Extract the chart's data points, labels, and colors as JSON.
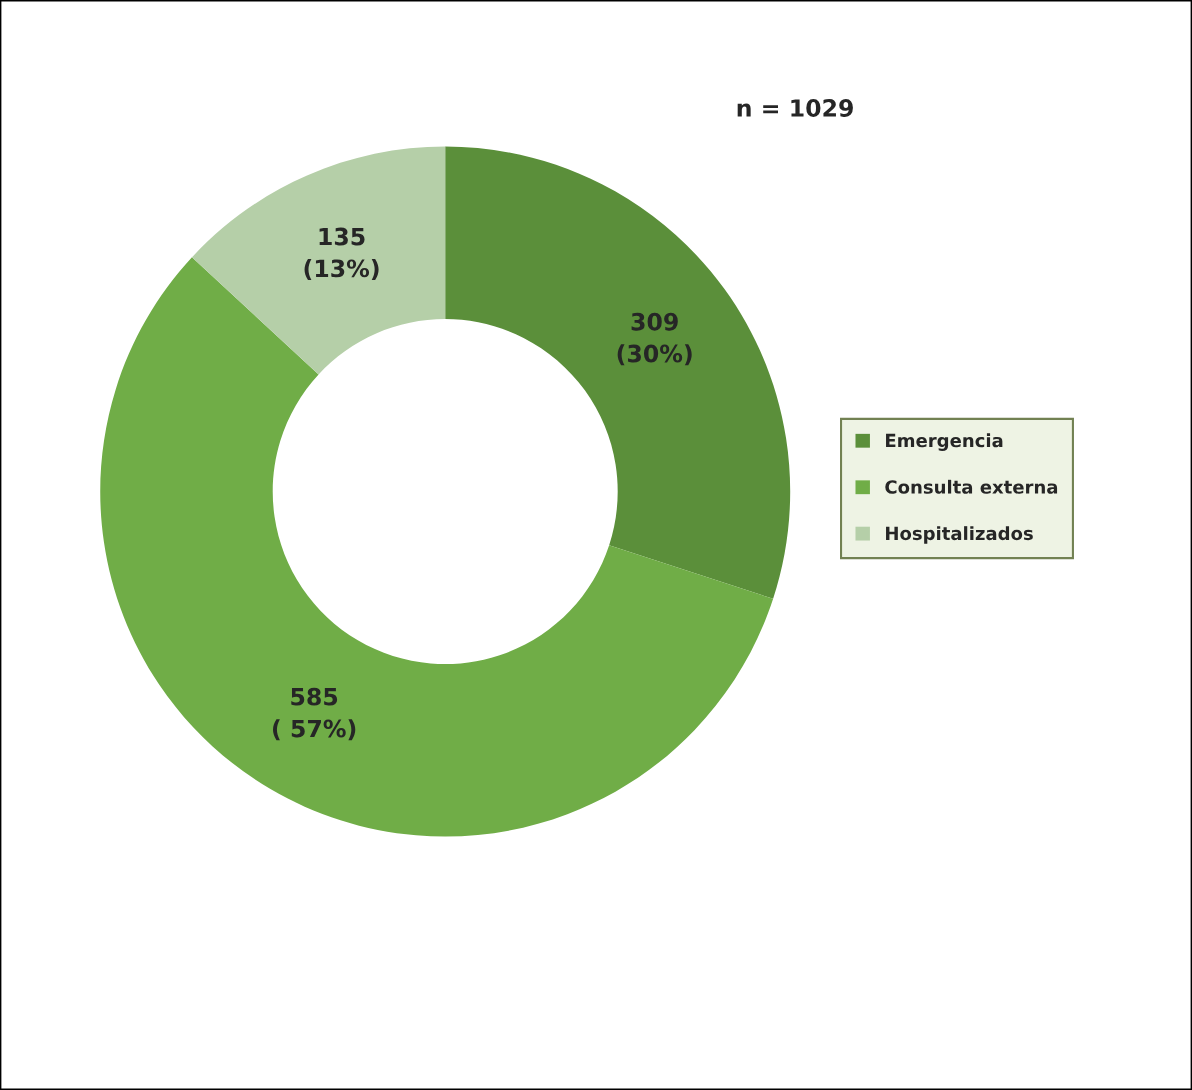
{
  "chart_data": {
    "type": "donut",
    "title": "n = 1029",
    "categories": [
      "Emergencia",
      "Consulta externa",
      "Hospitalizados"
    ],
    "values": [
      309,
      585,
      135
    ],
    "colors": [
      "#5b8f3a",
      "#70ad47",
      "#b5cfa8"
    ],
    "value_labels": [
      "309\n(30%)",
      "585\n( 57%)",
      "135\n(13%)"
    ],
    "legend": "right"
  }
}
